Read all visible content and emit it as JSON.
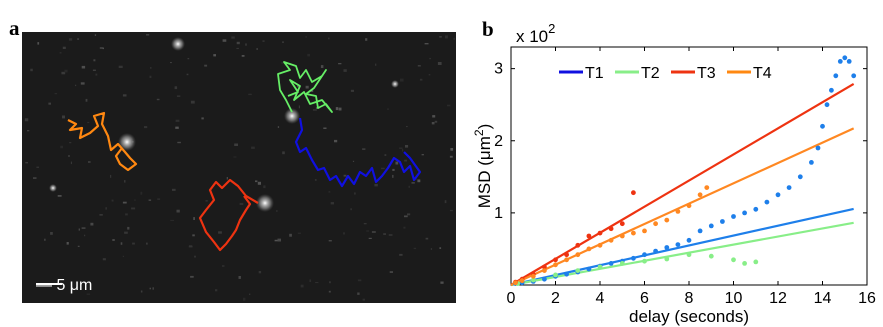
{
  "panels": {
    "a": {
      "letter": "a",
      "scale_bar_label": "— 5 μm",
      "colors": {
        "T1": "#1010e0",
        "T2": "#66ee66",
        "T3": "#ee3311",
        "T4": "#ff8811"
      }
    },
    "b": {
      "letter": "b"
    }
  },
  "chart_data": {
    "type": "scatter",
    "title": "",
    "xlabel": "delay (seconds)",
    "ylabel": "MSD (μm²)",
    "ylabel_base": "MSD (",
    "ylabel_unit": "μm",
    "ylabel_sup": "2",
    "ylabel_end": ")",
    "y_multiplier_base": "x 10",
    "y_multiplier_exp": "2",
    "xlim": [
      0,
      16
    ],
    "ylim": [
      0,
      3.3
    ],
    "xticks": [
      0,
      2,
      4,
      6,
      8,
      10,
      12,
      14,
      16
    ],
    "yticks": [
      1,
      2,
      3
    ],
    "grid": false,
    "legend_placement": "top-left",
    "series": [
      {
        "name": "T1",
        "color": "#1e7fea",
        "fit_slope": 0.0685,
        "points": [
          [
            0.2,
            0.02
          ],
          [
            0.5,
            0.03
          ],
          [
            1,
            0.05
          ],
          [
            1.5,
            0.08
          ],
          [
            2,
            0.12
          ],
          [
            2.5,
            0.15
          ],
          [
            3,
            0.18
          ],
          [
            3.5,
            0.22
          ],
          [
            4,
            0.26
          ],
          [
            4.5,
            0.3
          ],
          [
            5,
            0.33
          ],
          [
            5.5,
            0.37
          ],
          [
            6,
            0.42
          ],
          [
            6.5,
            0.47
          ],
          [
            7,
            0.52
          ],
          [
            7.5,
            0.56
          ],
          [
            8,
            0.62
          ],
          [
            8.5,
            0.75
          ],
          [
            9,
            0.82
          ],
          [
            9.5,
            0.88
          ],
          [
            10,
            0.95
          ],
          [
            10.5,
            1.0
          ],
          [
            11,
            1.05
          ],
          [
            11.5,
            1.15
          ],
          [
            12,
            1.25
          ],
          [
            12.5,
            1.35
          ],
          [
            13,
            1.5
          ],
          [
            13.5,
            1.7
          ],
          [
            13.8,
            1.9
          ],
          [
            14,
            2.2
          ],
          [
            14.2,
            2.5
          ],
          [
            14.4,
            2.7
          ],
          [
            14.6,
            2.9
          ],
          [
            14.8,
            3.1
          ],
          [
            15,
            3.15
          ],
          [
            15.2,
            3.1
          ],
          [
            15.4,
            2.9
          ]
        ]
      },
      {
        "name": "T2",
        "color": "#88ee88",
        "fit_slope": 0.056,
        "points": [
          [
            0.3,
            0.02
          ],
          [
            1,
            0.07
          ],
          [
            2,
            0.14
          ],
          [
            3,
            0.2
          ],
          [
            4,
            0.25
          ],
          [
            5,
            0.3
          ],
          [
            6,
            0.33
          ],
          [
            7,
            0.36
          ],
          [
            8,
            0.42
          ],
          [
            9,
            0.4
          ],
          [
            10,
            0.35
          ],
          [
            10.5,
            0.3
          ],
          [
            11,
            0.32
          ]
        ]
      },
      {
        "name": "T3",
        "color": "#ee3311",
        "fit_slope": 0.181,
        "points": [
          [
            0.2,
            0.04
          ],
          [
            0.5,
            0.08
          ],
          [
            1,
            0.15
          ],
          [
            1.5,
            0.25
          ],
          [
            2,
            0.35
          ],
          [
            2.5,
            0.42
          ],
          [
            3,
            0.55
          ],
          [
            3.5,
            0.68
          ],
          [
            4,
            0.72
          ],
          [
            4.5,
            0.78
          ],
          [
            5,
            0.85
          ],
          [
            5.5,
            1.28
          ]
        ]
      },
      {
        "name": "T4",
        "color": "#ff8822",
        "fit_slope": 0.141,
        "points": [
          [
            0.2,
            0.03
          ],
          [
            0.5,
            0.06
          ],
          [
            1,
            0.12
          ],
          [
            1.5,
            0.2
          ],
          [
            2,
            0.28
          ],
          [
            2.5,
            0.35
          ],
          [
            3,
            0.42
          ],
          [
            3.5,
            0.5
          ],
          [
            4,
            0.55
          ],
          [
            4.5,
            0.62
          ],
          [
            5,
            0.68
          ],
          [
            5.5,
            0.72
          ],
          [
            6,
            0.75
          ],
          [
            6.5,
            0.85
          ],
          [
            7,
            0.9
          ],
          [
            7.5,
            1.02
          ],
          [
            8,
            1.1
          ],
          [
            8.5,
            1.25
          ],
          [
            8.8,
            1.35
          ]
        ]
      }
    ]
  }
}
